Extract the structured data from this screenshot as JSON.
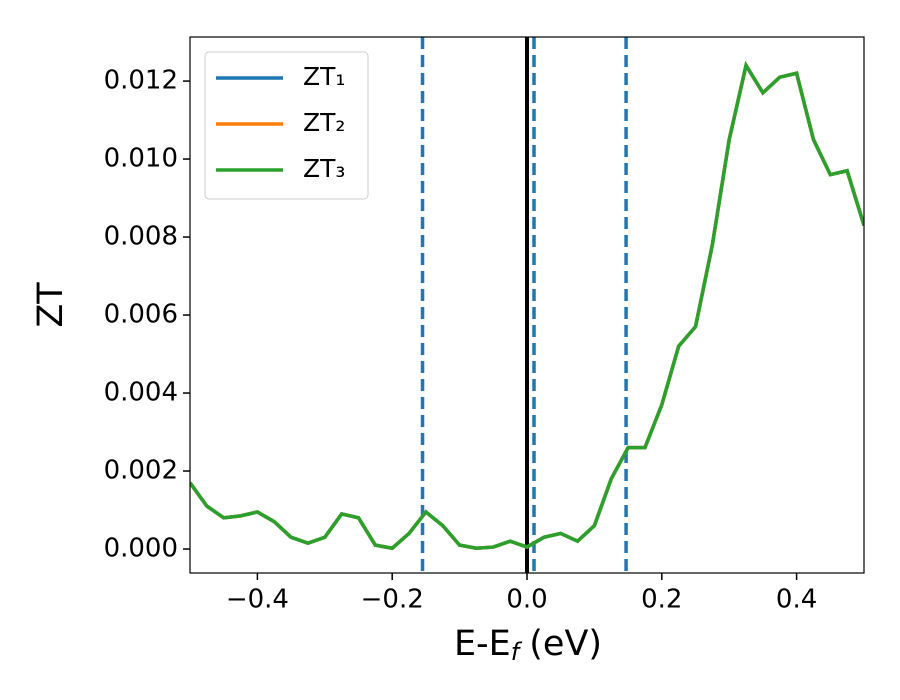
{
  "chart_data": {
    "type": "line",
    "xlabel": {
      "main": "E-E",
      "sub": "f",
      "unit": "(eV)"
    },
    "ylabel": "ZT",
    "x": [
      -0.5,
      -0.475,
      -0.45,
      -0.425,
      -0.4,
      -0.375,
      -0.35,
      -0.325,
      -0.3,
      -0.275,
      -0.25,
      -0.225,
      -0.2,
      -0.175,
      -0.15,
      -0.125,
      -0.1,
      -0.075,
      -0.05,
      -0.025,
      0,
      0.025,
      0.05,
      0.075,
      0.1,
      0.125,
      0.15,
      0.175,
      0.2,
      0.225,
      0.25,
      0.275,
      0.3,
      0.325,
      0.35,
      0.375,
      0.4,
      0.425,
      0.45,
      0.475,
      0.5
    ],
    "series": [
      {
        "name": "ZT₁",
        "color": "#1f77b4",
        "values": [
          0.0017,
          0.0011,
          0.0008,
          0.00085,
          0.00095,
          0.0007,
          0.0003,
          0.00015,
          0.0003,
          0.0009,
          0.0008,
          0.0001,
          2e-05,
          0.0004,
          0.00095,
          0.0006,
          0.0001,
          2e-05,
          5e-05,
          0.0002,
          5e-05,
          0.0003,
          0.0004,
          0.0002,
          0.0006,
          0.0018,
          0.0026,
          0.0026,
          0.0037,
          0.0052,
          0.0057,
          0.0078,
          0.0105,
          0.0124,
          0.0117,
          0.0121,
          0.0122,
          0.0105,
          0.0096,
          0.0097,
          0.0083
        ]
      },
      {
        "name": "ZT₂",
        "color": "#ff7f0e",
        "values": [
          0.0017,
          0.0011,
          0.0008,
          0.00085,
          0.00095,
          0.0007,
          0.0003,
          0.00015,
          0.0003,
          0.0009,
          0.0008,
          0.0001,
          2e-05,
          0.0004,
          0.00095,
          0.0006,
          0.0001,
          2e-05,
          5e-05,
          0.0002,
          5e-05,
          0.0003,
          0.0004,
          0.0002,
          0.0006,
          0.0018,
          0.0026,
          0.0026,
          0.0037,
          0.0052,
          0.0057,
          0.0078,
          0.0105,
          0.0124,
          0.0117,
          0.0121,
          0.0122,
          0.0105,
          0.0096,
          0.0097,
          0.0083
        ]
      },
      {
        "name": "ZT₃",
        "color": "#2ca02c",
        "values": [
          0.0017,
          0.0011,
          0.0008,
          0.00085,
          0.00095,
          0.0007,
          0.0003,
          0.00015,
          0.0003,
          0.0009,
          0.0008,
          0.0001,
          2e-05,
          0.0004,
          0.00095,
          0.0006,
          0.0001,
          2e-05,
          5e-05,
          0.0002,
          5e-05,
          0.0003,
          0.0004,
          0.0002,
          0.0006,
          0.0018,
          0.0026,
          0.0026,
          0.0037,
          0.0052,
          0.0057,
          0.0078,
          0.0105,
          0.0124,
          0.0117,
          0.0121,
          0.0122,
          0.0105,
          0.0096,
          0.0097,
          0.0083
        ]
      }
    ],
    "vlines": [
      {
        "x": -0.155,
        "color": "#1f77b4",
        "dashed": true
      },
      {
        "x": 0,
        "color": "#000000",
        "dashed": false
      },
      {
        "x": 0.0104,
        "color": "#1f77b4",
        "dashed": true
      },
      {
        "x": 0.147,
        "color": "#1f77b4",
        "dashed": true
      }
    ],
    "xlim": [
      -0.5,
      0.5
    ],
    "ylim": [
      -0.000615,
      0.01313
    ],
    "xticks": [
      {
        "value": -0.4,
        "label": "−0.4"
      },
      {
        "value": -0.2,
        "label": "−0.2"
      },
      {
        "value": 0,
        "label": "0.0"
      },
      {
        "value": 0.2,
        "label": "0.2"
      },
      {
        "value": 0.4,
        "label": "0.4"
      }
    ],
    "yticks": [
      {
        "value": 0,
        "label": "0.000"
      },
      {
        "value": 0.002,
        "label": "0.002"
      },
      {
        "value": 0.004,
        "label": "0.004"
      },
      {
        "value": 0.006,
        "label": "0.006"
      },
      {
        "value": 0.008,
        "label": "0.008"
      },
      {
        "value": 0.01,
        "label": "0.010"
      },
      {
        "value": 0.012,
        "label": "0.012"
      }
    ],
    "legend": "upper left"
  }
}
